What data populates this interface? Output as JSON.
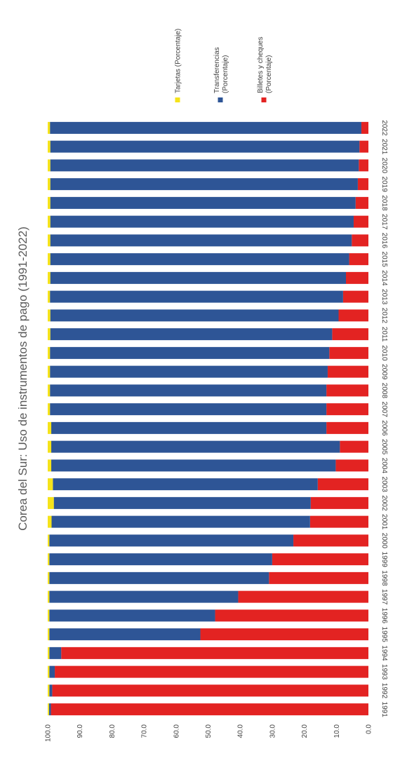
{
  "chart_data": {
    "type": "bar",
    "orientation": "horizontal-stacked",
    "title": "Corea del Sur: Uso de instrumentos de pago (1991-2022)",
    "xlabel": "",
    "ylabel": "",
    "xlim": [
      0,
      100
    ],
    "xticks": [
      "0.0",
      "10.0",
      "20.0",
      "30.0",
      "40.0",
      "50.0",
      "60.0",
      "70.0",
      "80.0",
      "90.0",
      "100.0"
    ],
    "grid": false,
    "legend_position": "top",
    "categories": [
      "1991",
      "1992",
      "1993",
      "1994",
      "1995",
      "1996",
      "1997",
      "1998",
      "1999",
      "2000",
      "2001",
      "2002",
      "2003",
      "2004",
      "2005",
      "2006",
      "2007",
      "2008",
      "2009",
      "2010",
      "2011",
      "2012",
      "2013",
      "2014",
      "2015",
      "2016",
      "2017",
      "2018",
      "2019",
      "2020",
      "2021",
      "2022"
    ],
    "series": [
      {
        "name": "Billetes y cheques (Porcentaje)",
        "color": "#E32322",
        "values": [
          99.0,
          98.6,
          97.8,
          95.8,
          52.4,
          47.8,
          40.6,
          31.0,
          30.0,
          23.4,
          18.2,
          18.0,
          15.8,
          10.2,
          8.9,
          13.1,
          13.1,
          13.1,
          12.7,
          12.2,
          11.3,
          9.3,
          7.9,
          7.0,
          6.0,
          5.2,
          4.6,
          4.0,
          3.3,
          3.0,
          2.8,
          2.2
        ]
      },
      {
        "name": "Transferencias (Porcentaje)",
        "color": "#2E5596",
        "values": [
          0.6,
          0.9,
          1.7,
          3.7,
          47.1,
          51.7,
          58.9,
          68.5,
          69.5,
          76.1,
          80.6,
          80.1,
          82.6,
          88.7,
          90.0,
          85.8,
          86.2,
          86.2,
          86.6,
          87.1,
          87.9,
          89.9,
          91.4,
          92.2,
          93.2,
          94.0,
          94.6,
          95.2,
          95.9,
          96.2,
          96.4,
          97.1
        ]
      },
      {
        "name": "Tarjetas (Porcentaje)",
        "color": "#F5E31A",
        "values": [
          0.4,
          0.5,
          0.5,
          0.5,
          0.5,
          0.5,
          0.5,
          0.5,
          0.5,
          0.5,
          1.2,
          1.9,
          1.6,
          1.1,
          1.1,
          1.1,
          0.7,
          0.7,
          0.7,
          0.7,
          0.8,
          0.8,
          0.7,
          0.8,
          0.8,
          0.8,
          0.8,
          0.8,
          0.8,
          0.8,
          0.8,
          0.7
        ]
      }
    ]
  }
}
